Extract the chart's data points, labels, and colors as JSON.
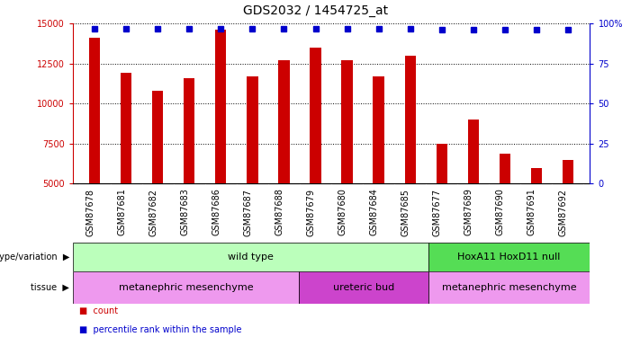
{
  "title": "GDS2032 / 1454725_at",
  "samples": [
    "GSM87678",
    "GSM87681",
    "GSM87682",
    "GSM87683",
    "GSM87686",
    "GSM87687",
    "GSM87688",
    "GSM87679",
    "GSM87680",
    "GSM87684",
    "GSM87685",
    "GSM87677",
    "GSM87689",
    "GSM87690",
    "GSM87691",
    "GSM87692"
  ],
  "counts": [
    14100,
    11900,
    10800,
    11600,
    14600,
    11700,
    12700,
    13500,
    12700,
    11700,
    13000,
    7500,
    9000,
    6900,
    6000,
    6500
  ],
  "percentiles": [
    97,
    97,
    97,
    97,
    97,
    97,
    97,
    97,
    97,
    97,
    97,
    96,
    96,
    96,
    96,
    96
  ],
  "ylim_left": [
    5000,
    15000
  ],
  "ylim_right": [
    0,
    100
  ],
  "yticks_left": [
    5000,
    7500,
    10000,
    12500,
    15000
  ],
  "yticks_right": [
    0,
    25,
    50,
    75,
    100
  ],
  "bar_color": "#cc0000",
  "dot_color": "#0000cc",
  "bar_bottom": 5000,
  "genotype_groups": [
    {
      "label": "wild type",
      "start": 0,
      "end": 11,
      "color": "#bbffbb"
    },
    {
      "label": "HoxA11 HoxD11 null",
      "start": 11,
      "end": 16,
      "color": "#55dd55"
    }
  ],
  "tissue_groups": [
    {
      "label": "metanephric mesenchyme",
      "start": 0,
      "end": 7,
      "color": "#ee99ee"
    },
    {
      "label": "ureteric bud",
      "start": 7,
      "end": 11,
      "color": "#cc44cc"
    },
    {
      "label": "metanephric mesenchyme",
      "start": 11,
      "end": 16,
      "color": "#ee99ee"
    }
  ],
  "bg_color": "#ffffff",
  "tick_area_color": "#cccccc",
  "grid_color": "#000000",
  "title_fontsize": 10,
  "tick_fontsize": 7,
  "label_fontsize": 8,
  "annot_fontsize": 7
}
